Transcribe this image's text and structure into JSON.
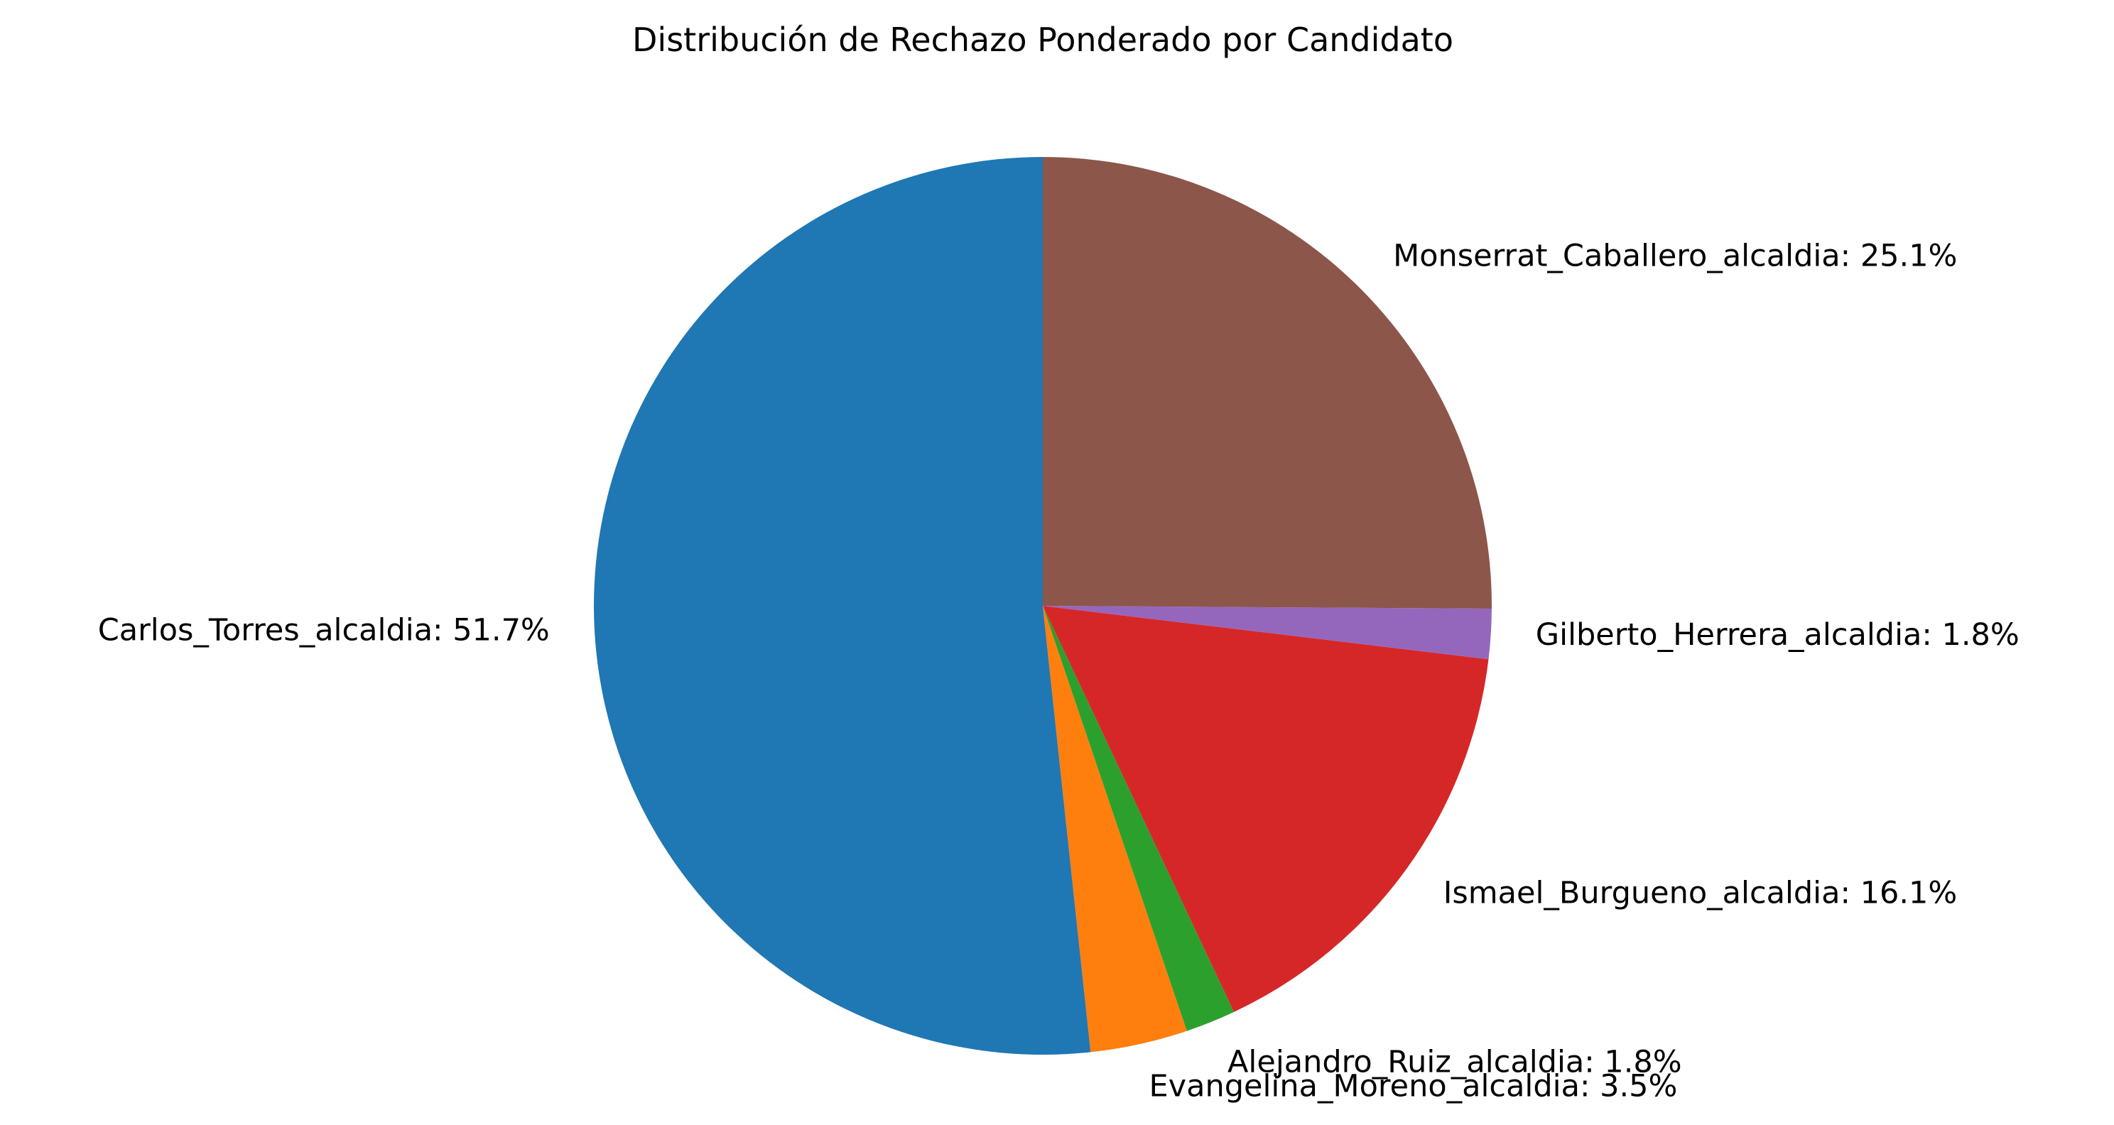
{
  "chart_data": {
    "type": "pie",
    "title": "Distribución de Rechazo Ponderado por Candidato",
    "start_angle_deg": 90,
    "direction": "counterclockwise",
    "slices": [
      {
        "label": "Carlos_Torres_alcaldia: 51.7%",
        "value": 51.7,
        "color": "#1f77b4"
      },
      {
        "label": "Evangelina_Moreno_alcaldia: 3.5%",
        "value": 3.5,
        "color": "#ff7f0e"
      },
      {
        "label": "Alejandro_Ruiz_alcaldia: 1.8%",
        "value": 1.8,
        "color": "#2ca02c"
      },
      {
        "label": "Ismael_Burgueno_alcaldia: 16.1%",
        "value": 16.1,
        "color": "#d62728"
      },
      {
        "label": "Gilberto_Herrera_alcaldia: 1.8%",
        "value": 1.8,
        "color": "#9467bd"
      },
      {
        "label": "Monserrat_Caballero_alcaldia: 25.1%",
        "value": 25.1,
        "color": "#8c564b"
      }
    ]
  }
}
